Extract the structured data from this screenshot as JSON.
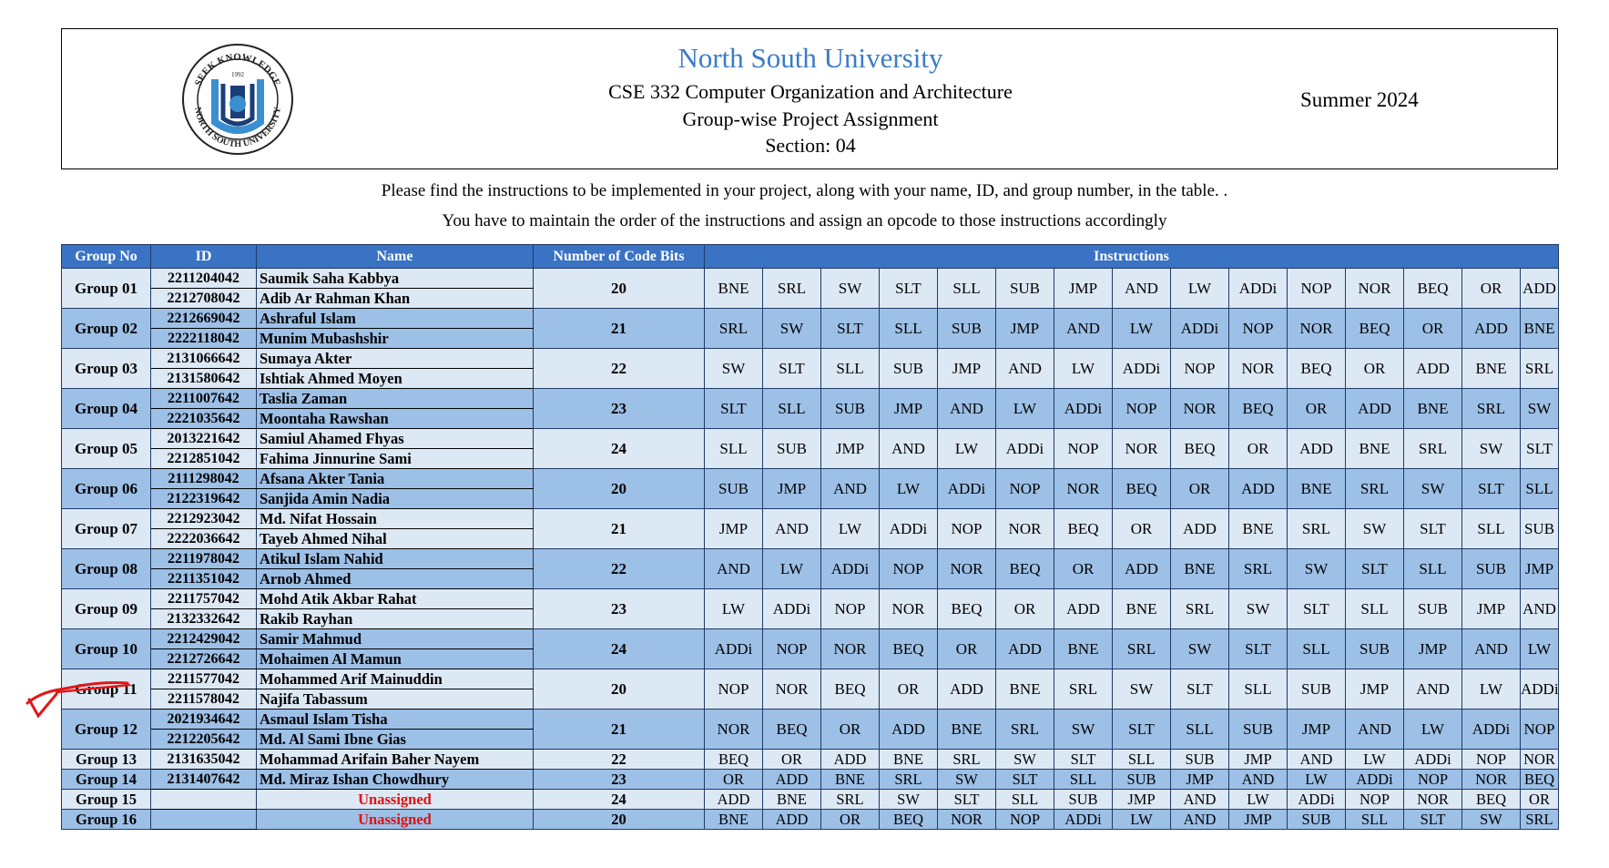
{
  "header": {
    "university": "North South University",
    "course": "CSE 332 Computer Organization and Architecture",
    "subtitle": "Group-wise Project Assignment",
    "section": "Section: 04",
    "term": "Summer 2024",
    "logo_text": {
      "top": "SEEK KNOWLEDGE",
      "bottom": "NORTH SOUTH UNIVERSITY",
      "year": "1992"
    }
  },
  "instructions": {
    "line1": "Please find the instructions to be implemented in your project, along with your name, ID, and group number, in the table. .",
    "line2": "You have to maintain the order of the instructions and assign an opcode to those instructions accordingly"
  },
  "table": {
    "headers": {
      "group": "Group No",
      "id": "ID",
      "name": "Name",
      "bits": "Number of Code Bits",
      "instructions": "Instructions"
    },
    "groups": [
      {
        "group": "Group 01",
        "members": [
          {
            "id": "2211204042",
            "name": "Saumik Saha Kabbya"
          },
          {
            "id": "2212708042",
            "name": "Adib Ar Rahman Khan"
          }
        ],
        "bits": "20",
        "instructions": [
          "BNE",
          "SRL",
          "SW",
          "SLT",
          "SLL",
          "SUB",
          "JMP",
          "AND",
          "LW",
          "ADDi",
          "NOP",
          "NOR",
          "BEQ",
          "OR",
          "ADD"
        ]
      },
      {
        "group": "Group 02",
        "members": [
          {
            "id": "2212669042",
            "name": "Ashraful Islam"
          },
          {
            "id": "2222118042",
            "name": "Munim Mubashshir"
          }
        ],
        "bits": "21",
        "instructions": [
          "SRL",
          "SW",
          "SLT",
          "SLL",
          "SUB",
          "JMP",
          "AND",
          "LW",
          "ADDi",
          "NOP",
          "NOR",
          "BEQ",
          "OR",
          "ADD",
          "BNE"
        ]
      },
      {
        "group": "Group 03",
        "members": [
          {
            "id": "2131066642",
            "name": "Sumaya Akter"
          },
          {
            "id": "2131580642",
            "name": "Ishtiak Ahmed Moyen"
          }
        ],
        "bits": "22",
        "instructions": [
          "SW",
          "SLT",
          "SLL",
          "SUB",
          "JMP",
          "AND",
          "LW",
          "ADDi",
          "NOP",
          "NOR",
          "BEQ",
          "OR",
          "ADD",
          "BNE",
          "SRL"
        ]
      },
      {
        "group": "Group 04",
        "members": [
          {
            "id": "2211007642",
            "name": "Taslia Zaman"
          },
          {
            "id": "2221035642",
            "name": "Moontaha Rawshan"
          }
        ],
        "bits": "23",
        "instructions": [
          "SLT",
          "SLL",
          "SUB",
          "JMP",
          "AND",
          "LW",
          "ADDi",
          "NOP",
          "NOR",
          "BEQ",
          "OR",
          "ADD",
          "BNE",
          "SRL",
          "SW"
        ]
      },
      {
        "group": "Group 05",
        "members": [
          {
            "id": "2013221642",
            "name": "Samiul Ahamed Fhyas"
          },
          {
            "id": "2212851042",
            "name": "Fahima Jinnurine Sami"
          }
        ],
        "bits": "24",
        "instructions": [
          "SLL",
          "SUB",
          "JMP",
          "AND",
          "LW",
          "ADDi",
          "NOP",
          "NOR",
          "BEQ",
          "OR",
          "ADD",
          "BNE",
          "SRL",
          "SW",
          "SLT"
        ]
      },
      {
        "group": "Group 06",
        "members": [
          {
            "id": "2111298042",
            "name": "Afsana Akter Tania"
          },
          {
            "id": "2122319642",
            "name": "Sanjida Amin Nadia"
          }
        ],
        "bits": "20",
        "instructions": [
          "SUB",
          "JMP",
          "AND",
          "LW",
          "ADDi",
          "NOP",
          "NOR",
          "BEQ",
          "OR",
          "ADD",
          "BNE",
          "SRL",
          "SW",
          "SLT",
          "SLL"
        ]
      },
      {
        "group": "Group 07",
        "members": [
          {
            "id": "2212923042",
            "name": "Md. Nifat Hossain"
          },
          {
            "id": "2222036642",
            "name": "Tayeb Ahmed Nihal"
          }
        ],
        "bits": "21",
        "instructions": [
          "JMP",
          "AND",
          "LW",
          "ADDi",
          "NOP",
          "NOR",
          "BEQ",
          "OR",
          "ADD",
          "BNE",
          "SRL",
          "SW",
          "SLT",
          "SLL",
          "SUB"
        ]
      },
      {
        "group": "Group 08",
        "members": [
          {
            "id": "2211978042",
            "name": "Atikul Islam Nahid"
          },
          {
            "id": "2211351042",
            "name": "Arnob Ahmed"
          }
        ],
        "bits": "22",
        "instructions": [
          "AND",
          "LW",
          "ADDi",
          "NOP",
          "NOR",
          "BEQ",
          "OR",
          "ADD",
          "BNE",
          "SRL",
          "SW",
          "SLT",
          "SLL",
          "SUB",
          "JMP"
        ]
      },
      {
        "group": "Group 09",
        "members": [
          {
            "id": "2211757042",
            "name": "Mohd Atik Akbar Rahat"
          },
          {
            "id": "2132332642",
            "name": "Rakib Rayhan"
          }
        ],
        "bits": "23",
        "instructions": [
          "LW",
          "ADDi",
          "NOP",
          "NOR",
          "BEQ",
          "OR",
          "ADD",
          "BNE",
          "SRL",
          "SW",
          "SLT",
          "SLL",
          "SUB",
          "JMP",
          "AND"
        ]
      },
      {
        "group": "Group 10",
        "members": [
          {
            "id": "2212429042",
            "name": "Samir Mahmud"
          },
          {
            "id": "2212726642",
            "name": "Mohaimen Al Mamun"
          }
        ],
        "bits": "24",
        "instructions": [
          "ADDi",
          "NOP",
          "NOR",
          "BEQ",
          "OR",
          "ADD",
          "BNE",
          "SRL",
          "SW",
          "SLT",
          "SLL",
          "SUB",
          "JMP",
          "AND",
          "LW"
        ]
      },
      {
        "group": "Group 11",
        "members": [
          {
            "id": "2211577042",
            "name": "Mohammed Arif Mainuddin"
          },
          {
            "id": "2211578042",
            "name": "Najifa Tabassum"
          }
        ],
        "bits": "20",
        "instructions": [
          "NOP",
          "NOR",
          "BEQ",
          "OR",
          "ADD",
          "BNE",
          "SRL",
          "SW",
          "SLT",
          "SLL",
          "SUB",
          "JMP",
          "AND",
          "LW",
          "ADDi"
        ]
      },
      {
        "group": "Group 12",
        "members": [
          {
            "id": "2021934642",
            "name": "Asmaul Islam Tisha"
          },
          {
            "id": "2212205642",
            "name": "Md. Al Sami Ibne Gias"
          }
        ],
        "bits": "21",
        "instructions": [
          "NOR",
          "BEQ",
          "OR",
          "ADD",
          "BNE",
          "SRL",
          "SW",
          "SLT",
          "SLL",
          "SUB",
          "JMP",
          "AND",
          "LW",
          "ADDi",
          "NOP"
        ]
      },
      {
        "group": "Group 13",
        "members": [
          {
            "id": "2131635042",
            "name": "Mohammad Arifain Baher Nayem"
          }
        ],
        "bits": "22",
        "instructions": [
          "BEQ",
          "OR",
          "ADD",
          "BNE",
          "SRL",
          "SW",
          "SLT",
          "SLL",
          "SUB",
          "JMP",
          "AND",
          "LW",
          "ADDi",
          "NOP",
          "NOR"
        ]
      },
      {
        "group": "Group 14",
        "members": [
          {
            "id": "2131407642",
            "name": "Md. Miraz Ishan Chowdhury"
          }
        ],
        "bits": "23",
        "instructions": [
          "OR",
          "ADD",
          "BNE",
          "SRL",
          "SW",
          "SLT",
          "SLL",
          "SUB",
          "JMP",
          "AND",
          "LW",
          "ADDi",
          "NOP",
          "NOR",
          "BEQ"
        ]
      },
      {
        "group": "Group 15",
        "members": [
          {
            "id": "",
            "name": "Unassigned"
          }
        ],
        "bits": "24",
        "instructions": [
          "ADD",
          "BNE",
          "SRL",
          "SW",
          "SLT",
          "SLL",
          "SUB",
          "JMP",
          "AND",
          "LW",
          "ADDi",
          "NOP",
          "NOR",
          "BEQ",
          "OR"
        ]
      },
      {
        "group": "Group 16",
        "members": [
          {
            "id": "",
            "name": "Unassigned"
          }
        ],
        "bits": "20",
        "instructions": [
          "BNE",
          "ADD",
          "OR",
          "BEQ",
          "NOR",
          "NOP",
          "ADDi",
          "LW",
          "AND",
          "JMP",
          "SUB",
          "SLL",
          "SLT",
          "SW",
          "SRL"
        ]
      }
    ]
  }
}
